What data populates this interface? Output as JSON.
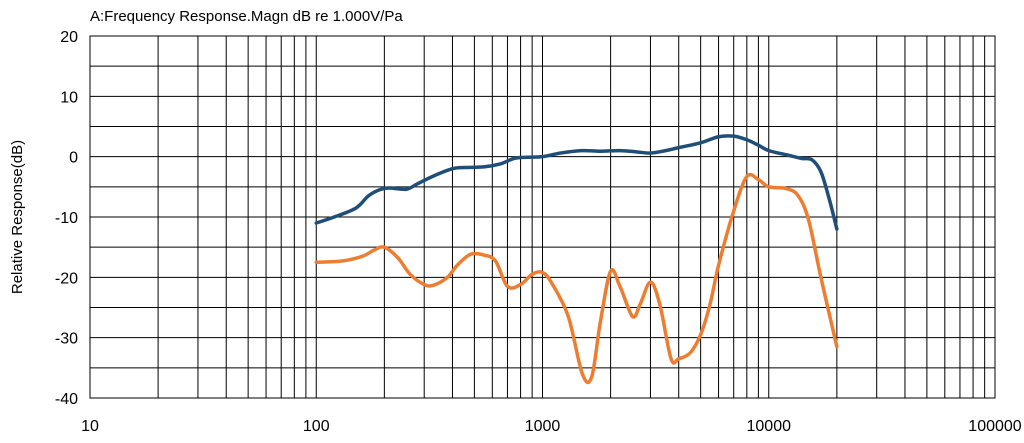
{
  "chart_data": {
    "type": "line",
    "title": "A:Frequency Response.Magn dB re 1.000V/Pa",
    "xlabel": "",
    "ylabel": "Relative Response(dB)",
    "xscale": "log",
    "xlim": [
      10,
      100000
    ],
    "ylim": [
      -40,
      20
    ],
    "x_tick_labels": [
      "10",
      "100",
      "1000",
      "10000",
      "100000"
    ],
    "y_tick_labels": [
      "20",
      "10",
      "0",
      "-10",
      "-20",
      "-30",
      "-40"
    ],
    "grid": true,
    "legend": "none",
    "series": [
      {
        "color": "#1f4e79",
        "x": [
          100,
          120,
          150,
          170,
          190,
          210,
          250,
          280,
          330,
          400,
          450,
          550,
          650,
          750,
          850,
          1000,
          1200,
          1500,
          1800,
          2200,
          2600,
          3000,
          3500,
          4000,
          5000,
          6000,
          7000,
          8000,
          9000,
          10000,
          12000,
          14000,
          15500,
          17000,
          18500,
          20000
        ],
        "y": [
          -11,
          -10,
          -8.5,
          -6.5,
          -5.5,
          -5.2,
          -5.4,
          -4.5,
          -3.2,
          -2,
          -1.8,
          -1.7,
          -1.2,
          -0.3,
          -0.1,
          0,
          0.6,
          1,
          0.9,
          1,
          0.8,
          0.6,
          1,
          1.5,
          2.3,
          3.3,
          3.4,
          2.8,
          1.9,
          1,
          0.3,
          -0.3,
          -0.5,
          -2.5,
          -7,
          -12
        ]
      },
      {
        "color": "#ed7d31",
        "x": [
          100,
          130,
          160,
          180,
          200,
          230,
          260,
          300,
          330,
          380,
          420,
          480,
          550,
          620,
          700,
          800,
          900,
          1000,
          1100,
          1300,
          1500,
          1650,
          1800,
          2000,
          2200,
          2500,
          2700,
          3000,
          3300,
          3700,
          4000,
          4500,
          5000,
          5500,
          6000,
          7000,
          8000,
          9000,
          10000,
          12000,
          13500,
          15000,
          17000,
          20000
        ],
        "y": [
          -17.5,
          -17.3,
          -16.5,
          -15.5,
          -15,
          -16.8,
          -19.5,
          -21.2,
          -21.3,
          -20,
          -18,
          -16.2,
          -16.3,
          -17.3,
          -21.5,
          -21.2,
          -19.5,
          -19.2,
          -21,
          -26.5,
          -36,
          -36.5,
          -27.5,
          -19,
          -21.5,
          -26.5,
          -24.5,
          -20.8,
          -24.5,
          -33.5,
          -33.5,
          -32.5,
          -29.5,
          -24.5,
          -18,
          -9,
          -3.3,
          -3.8,
          -5,
          -5.3,
          -6.5,
          -10.5,
          -20,
          -31.5
        ]
      }
    ]
  }
}
